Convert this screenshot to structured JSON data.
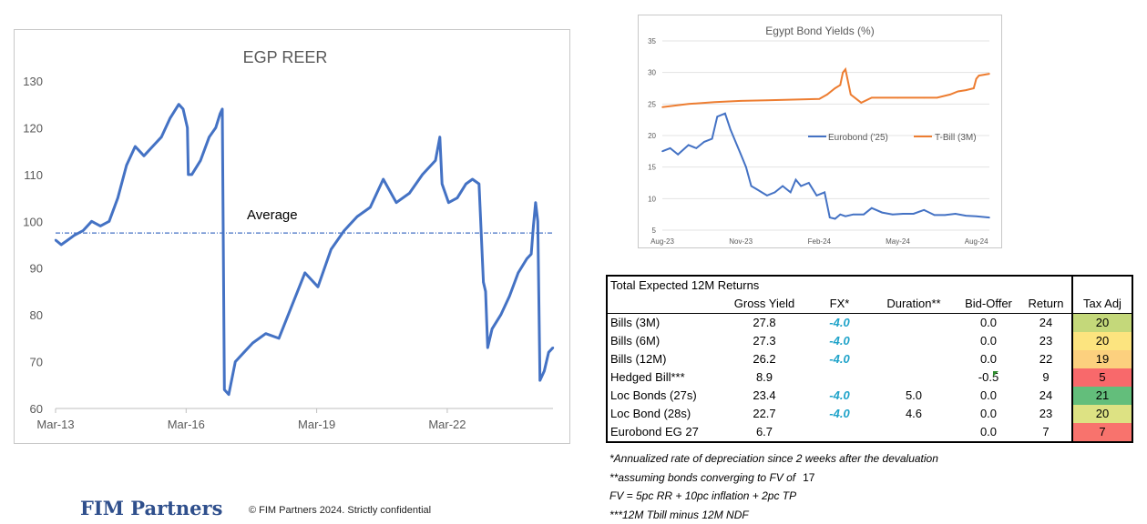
{
  "chart_data": [
    {
      "type": "line",
      "title": "EGP REER",
      "xlabel": "",
      "ylabel": "",
      "x_ticks": [
        "Mar-13",
        "Mar-16",
        "Mar-19",
        "Mar-22"
      ],
      "x_range": [
        2013.17,
        2024.6
      ],
      "y_ticks": [
        60,
        70,
        80,
        90,
        100,
        110,
        120,
        130
      ],
      "ylim": [
        60,
        130
      ],
      "reference_line": {
        "label": "Average",
        "value": 97.5
      },
      "series": [
        {
          "name": "EGP REER",
          "color": "#4472c4",
          "x": [
            2013.17,
            2013.3,
            2013.45,
            2013.6,
            2013.8,
            2014.0,
            2014.2,
            2014.4,
            2014.6,
            2014.8,
            2015.0,
            2015.2,
            2015.4,
            2015.6,
            2015.8,
            2016.0,
            2016.1,
            2016.2,
            2016.22,
            2016.3,
            2016.5,
            2016.7,
            2016.85,
            2016.95,
            2017.0,
            2017.05,
            2017.15,
            2017.3,
            2017.5,
            2017.7,
            2018.0,
            2018.3,
            2018.6,
            2018.9,
            2019.2,
            2019.5,
            2019.8,
            2020.1,
            2020.4,
            2020.7,
            2021.0,
            2021.3,
            2021.6,
            2021.9,
            2022.0,
            2022.05,
            2022.2,
            2022.4,
            2022.6,
            2022.75,
            2022.9,
            2023.0,
            2023.05,
            2023.1,
            2023.2,
            2023.4,
            2023.6,
            2023.8,
            2024.0,
            2024.1,
            2024.15,
            2024.2,
            2024.25,
            2024.3,
            2024.4,
            2024.5,
            2024.6
          ],
          "values": [
            96,
            95,
            96,
            97,
            98,
            100,
            99,
            100,
            105,
            112,
            116,
            114,
            116,
            118,
            122,
            125,
            124,
            120,
            110,
            110,
            113,
            118,
            120,
            123,
            124,
            64,
            63,
            70,
            72,
            74,
            76,
            75,
            82,
            89,
            86,
            94,
            98,
            101,
            103,
            109,
            104,
            106,
            110,
            113,
            118,
            108,
            104,
            105,
            108,
            109,
            108,
            87,
            85,
            73,
            77,
            80,
            84,
            89,
            92,
            93,
            99,
            104,
            100,
            66,
            68,
            72,
            73
          ]
        }
      ]
    },
    {
      "type": "line",
      "title": "Egypt Bond Yields (%)",
      "x_ticks": [
        "Aug-23",
        "Nov-23",
        "Feb-24",
        "May-24",
        "Aug-24"
      ],
      "x_range": [
        0,
        12.5
      ],
      "y_ticks": [
        5,
        10,
        15,
        20,
        25,
        30,
        35
      ],
      "ylim": [
        5,
        35
      ],
      "legend": "center-right",
      "series": [
        {
          "name": "Eurobond ('25)",
          "color": "#4472c4",
          "x": [
            0,
            0.3,
            0.6,
            1.0,
            1.3,
            1.6,
            1.9,
            2.1,
            2.4,
            2.6,
            2.8,
            3.0,
            3.2,
            3.4,
            3.6,
            3.8,
            4.0,
            4.3,
            4.6,
            4.9,
            5.1,
            5.3,
            5.6,
            5.9,
            6.2,
            6.4,
            6.6,
            6.8,
            7.0,
            7.3,
            7.7,
            8.0,
            8.4,
            8.8,
            9.2,
            9.6,
            10.0,
            10.4,
            10.8,
            11.2,
            11.6,
            12.0,
            12.5
          ],
          "values": [
            17.5,
            18.0,
            17.0,
            18.5,
            18.0,
            19.0,
            19.5,
            23.0,
            23.5,
            21.0,
            19.0,
            17.0,
            15.0,
            12.0,
            11.5,
            11.0,
            10.5,
            11.0,
            12.0,
            11.0,
            13.0,
            12.0,
            12.5,
            10.5,
            11.0,
            7.0,
            6.8,
            7.5,
            7.2,
            7.5,
            7.5,
            8.5,
            7.8,
            7.5,
            7.6,
            7.6,
            8.2,
            7.4,
            7.4,
            7.6,
            7.3,
            7.2,
            7.0
          ]
        },
        {
          "name": "T-Bill (3M)",
          "color": "#ed7d31",
          "x": [
            0,
            1,
            2,
            3,
            4,
            5,
            6,
            6.3,
            6.6,
            6.8,
            6.9,
            7.0,
            7.2,
            7.6,
            8.0,
            9.0,
            10.0,
            10.5,
            11.0,
            11.3,
            11.6,
            11.9,
            12.0,
            12.1,
            12.5
          ],
          "values": [
            24.5,
            25.0,
            25.3,
            25.5,
            25.6,
            25.7,
            25.8,
            26.5,
            27.5,
            28.0,
            30.0,
            30.5,
            26.5,
            25.2,
            26.0,
            26.0,
            26.0,
            26.0,
            26.5,
            27.0,
            27.2,
            27.5,
            29.0,
            29.5,
            29.8
          ]
        }
      ]
    }
  ],
  "returns_table": {
    "title": "Total Expected 12M Returns",
    "headers": {
      "gross_yield": "Gross Yield",
      "fx": "FX*",
      "duration": "Duration**",
      "bid_offer": "Bid-Offer",
      "return": "Return",
      "tax_adj": "Tax Adj"
    },
    "rows": [
      {
        "name": "Bills (3M)",
        "gross_yield": "27.8",
        "fx": "-4.0",
        "duration": "",
        "bid_offer": "0.0",
        "return": "24",
        "tax_adj": "20",
        "tax_color": "#c4d87a"
      },
      {
        "name": "Bills (6M)",
        "gross_yield": "27.3",
        "fx": "-4.0",
        "duration": "",
        "bid_offer": "0.0",
        "return": "23",
        "tax_adj": "20",
        "tax_color": "#fce47f"
      },
      {
        "name": "Bills (12M)",
        "gross_yield": "26.2",
        "fx": "-4.0",
        "duration": "",
        "bid_offer": "0.0",
        "return": "22",
        "tax_adj": "19",
        "tax_color": "#fcd07e"
      },
      {
        "name": "Hedged Bill***",
        "gross_yield": "8.9",
        "fx": "",
        "duration": "",
        "bid_offer": "-0.5",
        "return": "9",
        "tax_adj": "5",
        "tax_color": "#f8696b"
      },
      {
        "name": "Loc Bonds (27s)",
        "gross_yield": "23.4",
        "fx": "-4.0",
        "duration": "5.0",
        "bid_offer": "0.0",
        "return": "24",
        "tax_adj": "21",
        "tax_color": "#63be7b"
      },
      {
        "name": "Loc Bond (28s)",
        "gross_yield": "22.7",
        "fx": "-4.0",
        "duration": "4.6",
        "bid_offer": "0.0",
        "return": "23",
        "tax_adj": "20",
        "tax_color": "#dde283"
      },
      {
        "name": "Eurobond EG 27",
        "gross_yield": "6.7",
        "fx": "",
        "duration": "",
        "bid_offer": "0.0",
        "return": "7",
        "tax_adj": "7",
        "tax_color": "#f8736d"
      }
    ]
  },
  "notes": {
    "note1": "*Annualized rate of depreciation since 2 weeks after the devaluation",
    "note2": "**assuming bonds converging to FV of",
    "fv_value": "17",
    "note3": "FV = 5pc RR + 10pc inflation + 2pc TP",
    "note4": "***12M Tbill minus 12M NDF"
  },
  "footer": {
    "brand": "FIM Partners",
    "copyright": "© FIM Partners 2024. Strictly confidential"
  }
}
